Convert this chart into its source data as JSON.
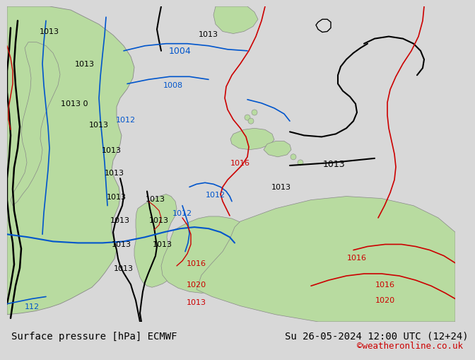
{
  "title_left": "Surface pressure [hPa] ECMWF",
  "title_right": "Su 26-05-2024 12:00 UTC (12+24)",
  "watermark": "©weatheronline.co.uk",
  "bg_color": "#d8d8d8",
  "map_bg_color": "#e8e8e8",
  "sea_color": "#dcdcdc",
  "land_color": "#b8dba0",
  "land_edge_color": "#888888",
  "isobar_black": "#000000",
  "isobar_blue": "#0055cc",
  "isobar_red": "#cc0000",
  "bottom_text_color": "#000000",
  "watermark_color": "#cc0000",
  "font_size_bottom": 10,
  "font_size_watermark": 9,
  "bottom_bar_color": "#e0e0e0"
}
